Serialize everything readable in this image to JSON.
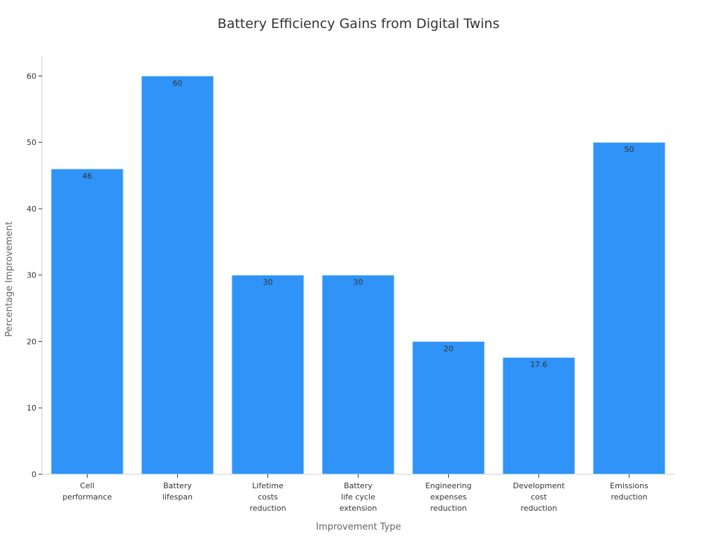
{
  "chart_data": {
    "type": "bar",
    "title": "Battery Efficiency Gains from Digital Twins",
    "xlabel": "Improvement Type",
    "ylabel": "Percentage Improvement",
    "categories": [
      [
        "Cell",
        "performance"
      ],
      [
        "Battery",
        "lifespan"
      ],
      [
        "Lifetime",
        "costs",
        "reduction"
      ],
      [
        "Battery",
        "life cycle",
        "extension"
      ],
      [
        "Engineering",
        "expenses",
        "reduction"
      ],
      [
        "Development",
        "cost",
        "reduction"
      ],
      [
        "Emissions",
        "reduction"
      ]
    ],
    "values": [
      46,
      60,
      30,
      30,
      20,
      17.6,
      50
    ],
    "data_labels": [
      "46",
      "60",
      "30",
      "30",
      "20",
      "17.6",
      "50"
    ],
    "ylim": [
      0,
      63
    ],
    "yticks": [
      0,
      10,
      20,
      30,
      40,
      50,
      60
    ],
    "grid": false,
    "colors": {
      "bar": "#2f93f7",
      "bar_edge": "#d6e9fb",
      "axis": "#cccccc"
    }
  }
}
